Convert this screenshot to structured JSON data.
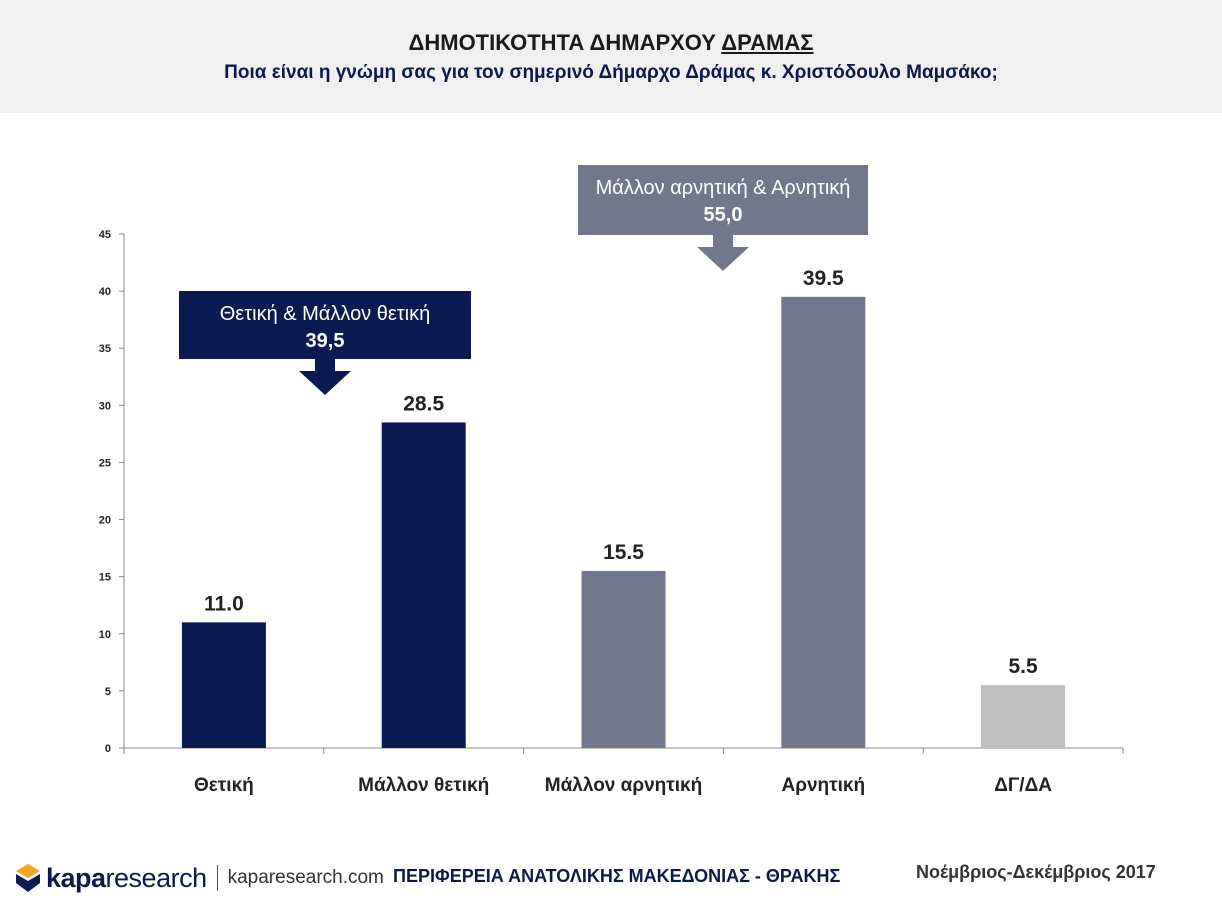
{
  "header": {
    "title_main": "ΔΗΜΟΤΙΚΟΤΗΤΑ ΔΗΜΑΡΧΟΥ",
    "title_underlined": "ΔΡΑΜΑΣ",
    "subtitle": "Ποια είναι η γνώμη σας για τον σημερινό Δήμαρχο Δράμας κ. Χριστόδουλο Μαμσάκο;"
  },
  "chart_data": {
    "type": "bar",
    "categories": [
      "Θετική",
      "Μάλλον θετική",
      "Μάλλον αρνητική",
      "Αρνητική",
      "ΔΓ/ΔΑ"
    ],
    "values": [
      11.0,
      28.5,
      15.5,
      39.5,
      5.5
    ],
    "value_labels": [
      "11.0",
      "28.5",
      "15.5",
      "39.5",
      "5.5"
    ],
    "bar_colors": [
      "#0c1a52",
      "#0c1a52",
      "#73778c",
      "#73778c",
      "#bfbfbf"
    ],
    "ylim": [
      0,
      45
    ],
    "yticks": [
      0,
      5,
      10,
      15,
      20,
      25,
      30,
      35,
      40,
      45
    ],
    "grid": false,
    "xlabel": "",
    "ylabel": "",
    "annotations": [
      {
        "label": "Θετική & Μάλλον θετική",
        "value": "39,5",
        "color": "#0c1a52",
        "spans": [
          0,
          1
        ]
      },
      {
        "label": "Μάλλον αρνητική & Αρνητική",
        "value": "55,0",
        "color": "#73778c",
        "spans": [
          2,
          3
        ]
      }
    ]
  },
  "footer": {
    "logo_kapa": "kapa",
    "logo_research": "research",
    "url": "kaparesearch.com",
    "region": "ΠΕΡΙΦΕΡΕΙΑ ΑΝΑΤΟΛΙΚΗΣ ΜΑΚΕΔΟΝΙΑΣ - ΘΡΑΚΗΣ",
    "date": "Νοέμβριος-Δεκέμβριος 2017",
    "accent_colors": [
      "#f5a623",
      "#0c1a52"
    ]
  }
}
